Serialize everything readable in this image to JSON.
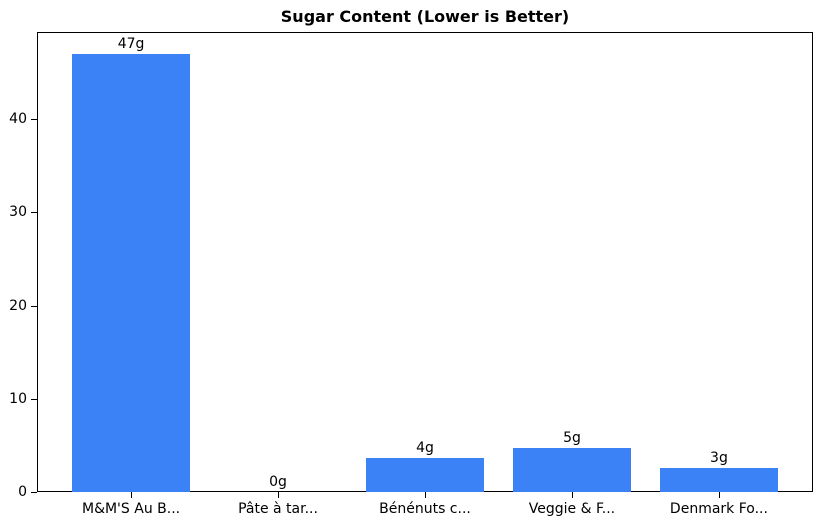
{
  "chart_data": {
    "type": "bar",
    "title": "Sugar Content (Lower is Better)",
    "categories": [
      "M&M'S Au B...",
      "Pâte à tar...",
      "Bénénuts c...",
      "Veggie & F...",
      "Denmark Fo..."
    ],
    "values": [
      47,
      0,
      3.6,
      4.7,
      2.6
    ],
    "bar_labels": [
      "47g",
      "0g",
      "4g",
      "5g",
      "3g"
    ],
    "xlabel": "",
    "ylabel": "",
    "yticks": [
      0,
      10,
      20,
      30,
      40
    ],
    "ylim": [
      0,
      49.35
    ],
    "grid": false,
    "legend": false,
    "bar_color": "#3b82f6",
    "axis_color": "#000000",
    "text_color": "#000000",
    "background_color": "#ffffff"
  }
}
